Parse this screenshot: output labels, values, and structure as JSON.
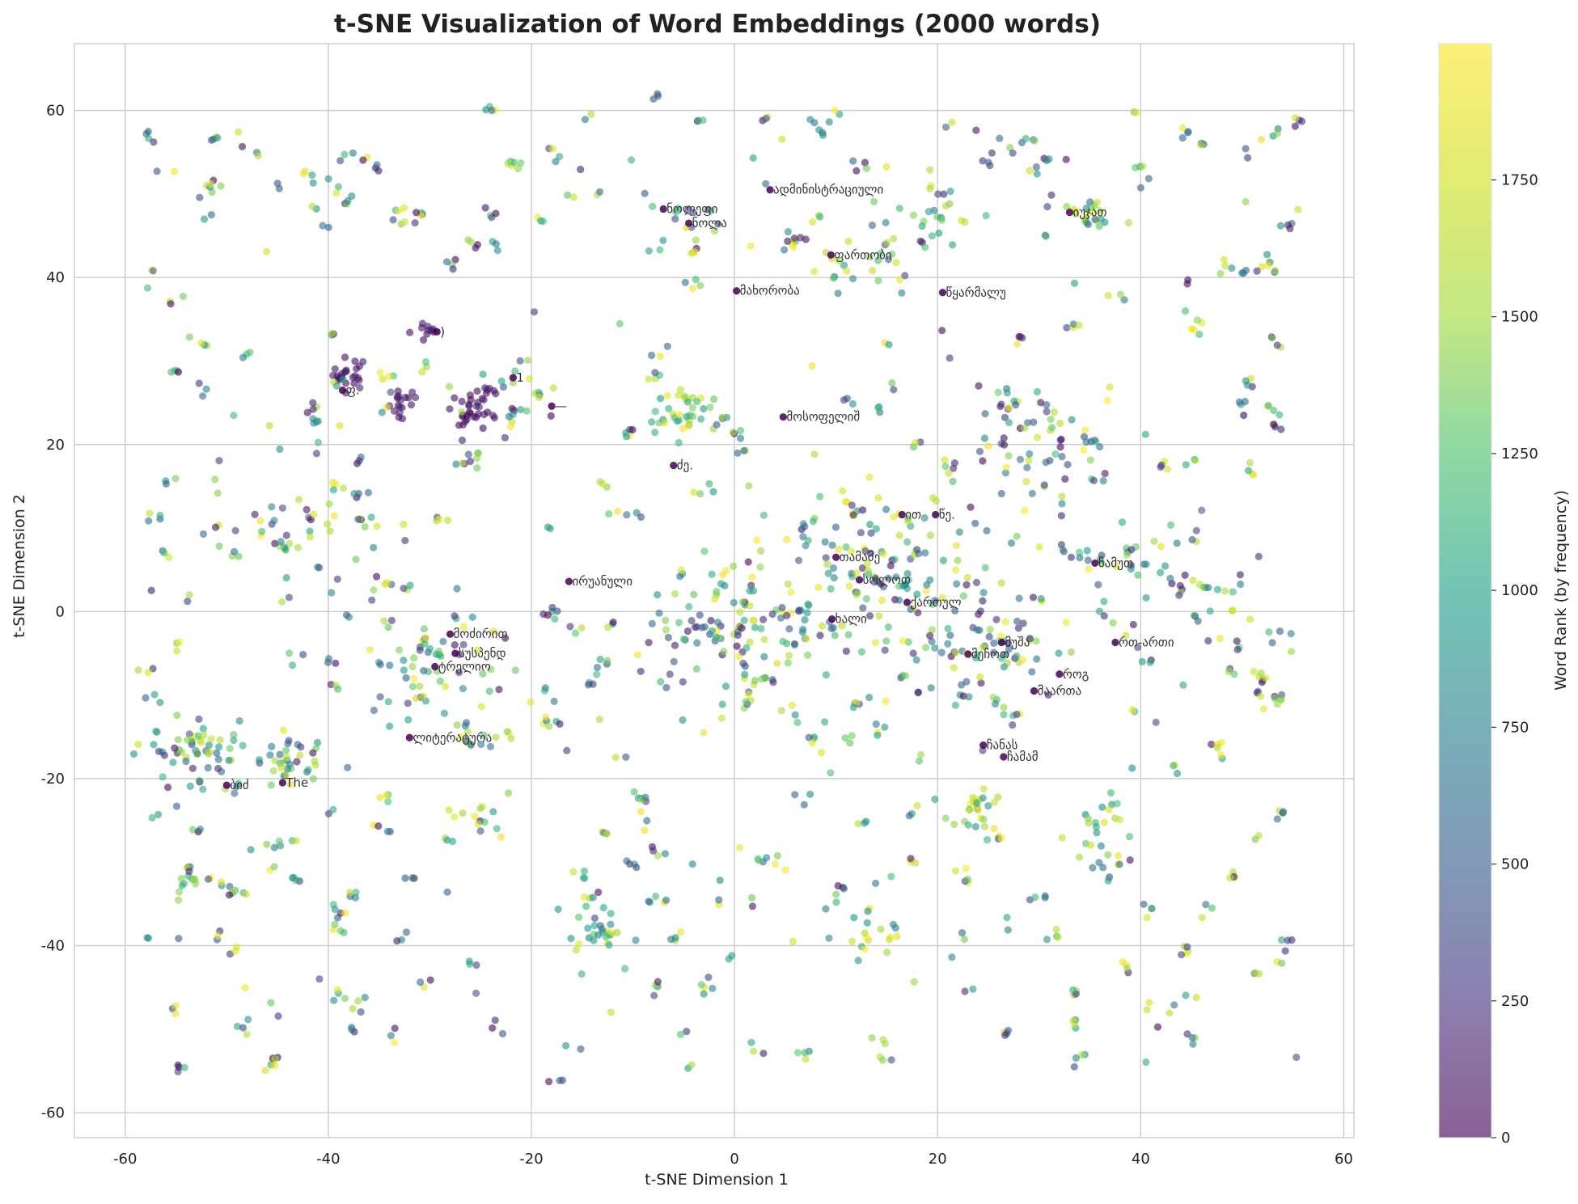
{
  "chart_data": {
    "type": "scatter",
    "title": "t-SNE Visualization of Word Embeddings (2000 words)",
    "xlabel": "t-SNE Dimension 1",
    "ylabel": "t-SNE Dimension 2",
    "xlim": [
      -65,
      61
    ],
    "ylim": [
      -63,
      68
    ],
    "xticks": [
      "-60",
      "-40",
      "-20",
      "0",
      "20",
      "40",
      "60"
    ],
    "yticks": [
      "-60",
      "-40",
      "-20",
      "0",
      "20",
      "40",
      "60"
    ],
    "grid": true,
    "colorbar": {
      "label": "Word Rank (by frequency)",
      "colormap": "viridis",
      "range": [
        0,
        1999
      ],
      "ticks": [
        "0",
        "250",
        "500",
        "750",
        "1000",
        "1250",
        "1500",
        "1750"
      ],
      "alpha": 0.6
    },
    "point_count": 2000,
    "clusters": [
      {
        "x": -30.5,
        "y": 33.8,
        "r": 1.2,
        "n": 10,
        "rank": [
          20,
          180
        ]
      },
      {
        "x": -38,
        "y": 28.5,
        "r": 1.6,
        "n": 24,
        "rank": [
          20,
          200
        ]
      },
      {
        "x": -33,
        "y": 25,
        "r": 1.4,
        "n": 18,
        "rank": [
          20,
          200
        ]
      },
      {
        "x": -25.5,
        "y": 24,
        "r": 2.4,
        "n": 40,
        "rank": [
          0,
          200
        ]
      },
      {
        "x": -7.5,
        "y": 61.8,
        "r": 0.5,
        "n": 3,
        "rank": [
          300,
          600
        ]
      },
      {
        "x": 8.2,
        "y": 57.7,
        "r": 0.8,
        "n": 6,
        "rank": [
          700,
          1000
        ]
      },
      {
        "x": -21.5,
        "y": 53.5,
        "r": 0.8,
        "n": 6,
        "rank": [
          1000,
          1800
        ]
      },
      {
        "x": 35,
        "y": 48,
        "r": 2.2,
        "n": 22,
        "rank": [
          300,
          1900
        ]
      },
      {
        "x": 20,
        "y": 47,
        "r": 3,
        "n": 18,
        "rank": [
          700,
          1900
        ]
      },
      {
        "x": -5,
        "y": 47,
        "r": 2.5,
        "n": 12,
        "rank": [
          300,
          1900
        ]
      },
      {
        "x": 15,
        "y": 42.5,
        "r": 3,
        "n": 16,
        "rank": [
          300,
          1900
        ]
      },
      {
        "x": 10,
        "y": 41,
        "r": 2,
        "n": 10,
        "rank": [
          300,
          1900
        ]
      },
      {
        "x": -5,
        "y": 24,
        "r": 2.8,
        "n": 34,
        "rank": [
          900,
          1999
        ]
      },
      {
        "x": -54,
        "y": -17,
        "r": 4,
        "n": 60,
        "rank": [
          0,
          1999
        ]
      },
      {
        "x": -44,
        "y": -18,
        "r": 3,
        "n": 34,
        "rank": [
          0,
          1999
        ]
      },
      {
        "x": -54,
        "y": -32.5,
        "r": 1.2,
        "n": 10,
        "rank": [
          1100,
          1500
        ]
      },
      {
        "x": -14,
        "y": -38,
        "r": 3,
        "n": 30,
        "rank": [
          700,
          1999
        ]
      },
      {
        "x": 24,
        "y": -24,
        "r": 2.5,
        "n": 24,
        "rank": [
          900,
          1999
        ]
      },
      {
        "x": 36,
        "y": -26,
        "r": 3,
        "n": 22,
        "rank": [
          600,
          1999
        ]
      },
      {
        "x": 13,
        "y": -38,
        "r": 3,
        "n": 20,
        "rank": [
          700,
          1999
        ]
      },
      {
        "x": 0,
        "y": -2,
        "r": 9,
        "n": 120,
        "rank": [
          0,
          1999
        ]
      },
      {
        "x": 15,
        "y": 5,
        "r": 9,
        "n": 120,
        "rank": [
          0,
          1999
        ]
      },
      {
        "x": 25,
        "y": -5,
        "r": 6,
        "n": 60,
        "rank": [
          0,
          1999
        ]
      },
      {
        "x": -30,
        "y": -5,
        "r": 6,
        "n": 50,
        "rank": [
          0,
          1999
        ]
      },
      {
        "x": -45,
        "y": 10,
        "r": 6,
        "n": 40,
        "rank": [
          0,
          1999
        ]
      },
      {
        "x": 30,
        "y": 20,
        "r": 7,
        "n": 60,
        "rank": [
          0,
          1999
        ]
      },
      {
        "x": 40,
        "y": 5,
        "r": 5,
        "n": 30,
        "rank": [
          0,
          1999
        ]
      },
      {
        "x": 48,
        "y": 0,
        "r": 5,
        "n": 20,
        "rank": [
          0,
          1999
        ]
      }
    ],
    "labels": [
      {
        "text": "ადმინისტრაციული",
        "x": 3.5,
        "y": 50.5
      },
      {
        "text": "ნოლეფი",
        "x": -7,
        "y": 48.2
      },
      {
        "text": "ნოლა",
        "x": -4.5,
        "y": 46.5
      },
      {
        "text": "იუჯათ",
        "x": 33,
        "y": 47.8
      },
      {
        "text": "ფართობი",
        "x": 9.5,
        "y": 42.7
      },
      {
        "text": "მახორობა",
        "x": 0.2,
        "y": 38.4
      },
      {
        "text": "წყარმალუ",
        "x": 20.5,
        "y": 38.2
      },
      {
        "text": ")",
        "x": -29.3,
        "y": 33.5
      },
      {
        "text": "1",
        "x": -21.8,
        "y": 28
      },
      {
        "text": "ფ.",
        "x": -38.6,
        "y": 26.5
      },
      {
        "text": "—",
        "x": -18,
        "y": 24.6
      },
      {
        "text": "მოსოფელიშ",
        "x": 4.8,
        "y": 23.3
      },
      {
        "text": "ძე.",
        "x": -6,
        "y": 17.5
      },
      {
        "text": "ით",
        "x": 16.5,
        "y": 11.6
      },
      {
        "text": "წე.",
        "x": 19.8,
        "y": 11.6
      },
      {
        "text": "თამამე",
        "x": 10,
        "y": 6.5
      },
      {
        "text": "ნამუთ",
        "x": 35.5,
        "y": 5.8
      },
      {
        "text": "ირუანული",
        "x": -16.3,
        "y": 3.6
      },
      {
        "text": "სოლოთ",
        "x": 12.3,
        "y": 3.8
      },
      {
        "text": "ქართულ",
        "x": 17,
        "y": 1.1
      },
      {
        "text": "ხალი",
        "x": 9.6,
        "y": -0.9
      },
      {
        "text": "მოძირით",
        "x": -28,
        "y": -2.7
      },
      {
        "text": "მუშა",
        "x": 26.3,
        "y": -3.7
      },
      {
        "text": "რთ-ართი",
        "x": 37.5,
        "y": -3.7
      },
      {
        "text": "სუსპენდ",
        "x": -27.5,
        "y": -5
      },
      {
        "text": "მეჩოთ",
        "x": 23,
        "y": -5.1
      },
      {
        "text": "ტრელიო",
        "x": -29.5,
        "y": -6.6
      },
      {
        "text": "როგ",
        "x": 32,
        "y": -7.5
      },
      {
        "text": "მაართა",
        "x": 29.5,
        "y": -9.5
      },
      {
        "text": "ლიტერატურა",
        "x": -32,
        "y": -15.1
      },
      {
        "text": "ჩანას",
        "x": 24.5,
        "y": -16
      },
      {
        "text": "ჩამამ",
        "x": 26.5,
        "y": -17.4
      },
      {
        "text": "The",
        "x": -44.5,
        "y": -20.5
      },
      {
        "text": "ბიძ",
        "x": -50,
        "y": -20.8
      }
    ]
  }
}
